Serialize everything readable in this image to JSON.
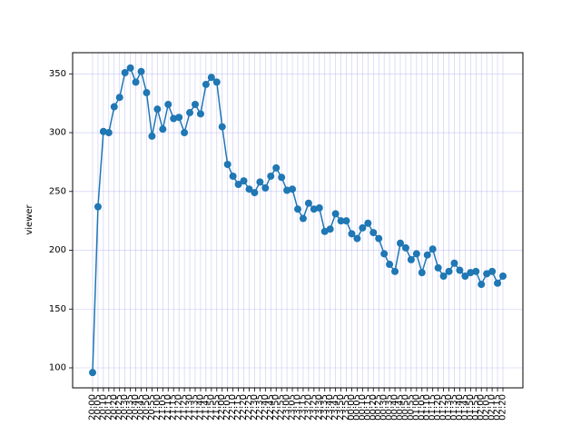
{
  "chart_data": {
    "type": "line",
    "title": "",
    "xlabel": "",
    "ylabel": "viewer",
    "ylim": [
      83,
      368
    ],
    "y_ticks": [
      100,
      150,
      200,
      250,
      300,
      350
    ],
    "grid": true,
    "grid_color": "#b0b0f0",
    "line_color": "#1f77b4",
    "marker": "circle",
    "x": [
      "20:00",
      "20:05",
      "20:10",
      "20:15",
      "20:20",
      "20:25",
      "20:30",
      "20:35",
      "20:40",
      "20:45",
      "20:50",
      "20:55",
      "21:00",
      "21:05",
      "21:10",
      "21:15",
      "21:20",
      "21:25",
      "21:30",
      "21:35",
      "21:40",
      "21:45",
      "21:50",
      "21:55",
      "22:00",
      "22:05",
      "22:10",
      "22:15",
      "22:20",
      "22:25",
      "22:30",
      "22:35",
      "22:40",
      "22:45",
      "22:50",
      "22:55",
      "23:00",
      "23:05",
      "23:10",
      "23:15",
      "23:20",
      "23:25",
      "23:30",
      "23:35",
      "23:40",
      "23:45",
      "23:50",
      "23:55",
      "00:00",
      "00:05",
      "00:10",
      "00:15",
      "00:20",
      "00:25",
      "00:30",
      "00:35",
      "00:40",
      "00:45",
      "00:50",
      "00:55",
      "01:00",
      "01:05",
      "01:10",
      "01:15",
      "01:20",
      "01:25",
      "01:30",
      "01:35",
      "01:40",
      "01:45",
      "01:50",
      "01:55",
      "02:00",
      "02:05",
      "02:10",
      "02:15",
      "02:20"
    ],
    "series": [
      {
        "values": [
          96,
          237,
          301,
          300,
          322,
          330,
          351,
          355,
          343,
          352,
          334,
          297,
          320,
          303,
          324,
          312,
          313,
          300,
          317,
          324,
          316,
          341,
          347,
          343,
          305,
          273,
          263,
          256,
          259,
          252,
          249,
          258,
          253,
          263,
          270,
          262,
          251,
          252,
          235,
          227,
          240,
          235,
          236,
          216,
          218,
          231,
          225,
          225,
          214,
          210,
          219,
          223,
          215,
          210,
          197,
          188,
          182,
          206,
          202,
          192,
          197,
          181,
          196,
          201,
          185,
          178,
          182,
          189,
          183,
          178,
          181,
          182,
          171,
          180,
          182,
          172,
          178
        ]
      }
    ]
  }
}
